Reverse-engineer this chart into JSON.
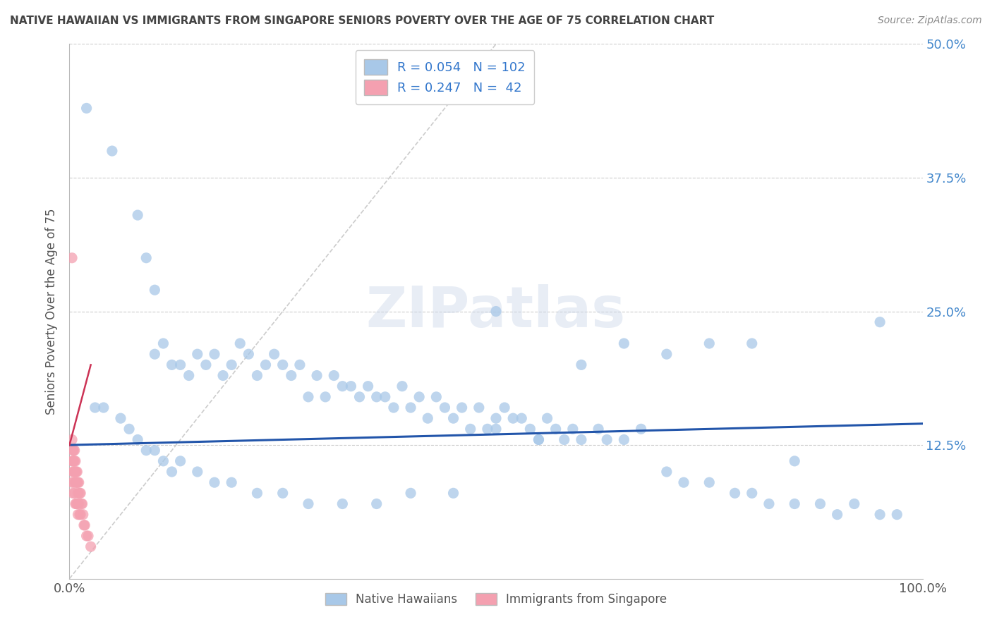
{
  "title": "NATIVE HAWAIIAN VS IMMIGRANTS FROM SINGAPORE SENIORS POVERTY OVER THE AGE OF 75 CORRELATION CHART",
  "source": "Source: ZipAtlas.com",
  "ylabel": "Seniors Poverty Over the Age of 75",
  "xlim": [
    0,
    1.0
  ],
  "ylim": [
    0,
    0.5
  ],
  "xticks": [
    0.0,
    1.0
  ],
  "xtick_labels": [
    "0.0%",
    "100.0%"
  ],
  "yticks": [
    0.0,
    0.125,
    0.25,
    0.375,
    0.5
  ],
  "ytick_labels": [
    "",
    "12.5%",
    "25.0%",
    "37.5%",
    "50.0%"
  ],
  "color_blue": "#a8c8e8",
  "color_pink": "#f4a0b0",
  "line_blue": "#2255aa",
  "line_pink": "#cc3355",
  "watermark": "ZIPatlas",
  "blue_scatter_x": [
    0.02,
    0.05,
    0.08,
    0.09,
    0.1,
    0.1,
    0.11,
    0.12,
    0.13,
    0.14,
    0.15,
    0.16,
    0.17,
    0.18,
    0.19,
    0.2,
    0.21,
    0.22,
    0.23,
    0.24,
    0.25,
    0.26,
    0.27,
    0.28,
    0.29,
    0.3,
    0.31,
    0.32,
    0.33,
    0.34,
    0.35,
    0.36,
    0.37,
    0.38,
    0.39,
    0.4,
    0.41,
    0.42,
    0.43,
    0.44,
    0.45,
    0.46,
    0.47,
    0.48,
    0.49,
    0.5,
    0.51,
    0.52,
    0.53,
    0.54,
    0.55,
    0.56,
    0.57,
    0.58,
    0.59,
    0.6,
    0.62,
    0.63,
    0.65,
    0.67,
    0.7,
    0.72,
    0.75,
    0.78,
    0.8,
    0.82,
    0.85,
    0.88,
    0.9,
    0.92,
    0.95,
    0.97,
    0.03,
    0.04,
    0.06,
    0.07,
    0.08,
    0.09,
    0.1,
    0.11,
    0.12,
    0.13,
    0.15,
    0.17,
    0.19,
    0.22,
    0.25,
    0.28,
    0.32,
    0.36,
    0.4,
    0.45,
    0.5,
    0.55,
    0.6,
    0.65,
    0.7,
    0.75,
    0.8,
    0.85,
    0.5,
    0.95
  ],
  "blue_scatter_y": [
    0.44,
    0.4,
    0.34,
    0.3,
    0.27,
    0.21,
    0.22,
    0.2,
    0.2,
    0.19,
    0.21,
    0.2,
    0.21,
    0.19,
    0.2,
    0.22,
    0.21,
    0.19,
    0.2,
    0.21,
    0.2,
    0.19,
    0.2,
    0.17,
    0.19,
    0.17,
    0.19,
    0.18,
    0.18,
    0.17,
    0.18,
    0.17,
    0.17,
    0.16,
    0.18,
    0.16,
    0.17,
    0.15,
    0.17,
    0.16,
    0.15,
    0.16,
    0.14,
    0.16,
    0.14,
    0.15,
    0.16,
    0.15,
    0.15,
    0.14,
    0.13,
    0.15,
    0.14,
    0.13,
    0.14,
    0.13,
    0.14,
    0.13,
    0.13,
    0.14,
    0.1,
    0.09,
    0.09,
    0.08,
    0.08,
    0.07,
    0.07,
    0.07,
    0.06,
    0.07,
    0.06,
    0.06,
    0.16,
    0.16,
    0.15,
    0.14,
    0.13,
    0.12,
    0.12,
    0.11,
    0.1,
    0.11,
    0.1,
    0.09,
    0.09,
    0.08,
    0.08,
    0.07,
    0.07,
    0.07,
    0.08,
    0.08,
    0.14,
    0.13,
    0.2,
    0.22,
    0.21,
    0.22,
    0.22,
    0.11,
    0.25,
    0.24
  ],
  "pink_scatter_x": [
    0.003,
    0.003,
    0.003,
    0.004,
    0.004,
    0.004,
    0.004,
    0.005,
    0.005,
    0.005,
    0.005,
    0.006,
    0.006,
    0.006,
    0.006,
    0.007,
    0.007,
    0.007,
    0.007,
    0.008,
    0.008,
    0.008,
    0.009,
    0.009,
    0.009,
    0.01,
    0.01,
    0.01,
    0.011,
    0.011,
    0.012,
    0.012,
    0.013,
    0.013,
    0.014,
    0.015,
    0.016,
    0.017,
    0.018,
    0.02,
    0.022,
    0.025
  ],
  "pink_scatter_y": [
    0.13,
    0.11,
    0.09,
    0.12,
    0.11,
    0.1,
    0.08,
    0.12,
    0.11,
    0.1,
    0.09,
    0.12,
    0.11,
    0.1,
    0.08,
    0.11,
    0.1,
    0.09,
    0.07,
    0.1,
    0.09,
    0.07,
    0.1,
    0.09,
    0.07,
    0.09,
    0.08,
    0.06,
    0.09,
    0.07,
    0.08,
    0.06,
    0.08,
    0.06,
    0.07,
    0.07,
    0.06,
    0.05,
    0.05,
    0.04,
    0.04,
    0.03
  ],
  "pink_outlier_x": [
    0.003
  ],
  "pink_outlier_y": [
    0.3
  ],
  "blue_trend_x": [
    0.0,
    1.0
  ],
  "blue_trend_y": [
    0.125,
    0.145
  ],
  "pink_trend_x": [
    0.0,
    0.025
  ],
  "pink_trend_y": [
    0.125,
    0.2
  ],
  "gray_trend_x": [
    0.0,
    0.5
  ],
  "gray_trend_y": [
    0.0,
    0.5
  ]
}
